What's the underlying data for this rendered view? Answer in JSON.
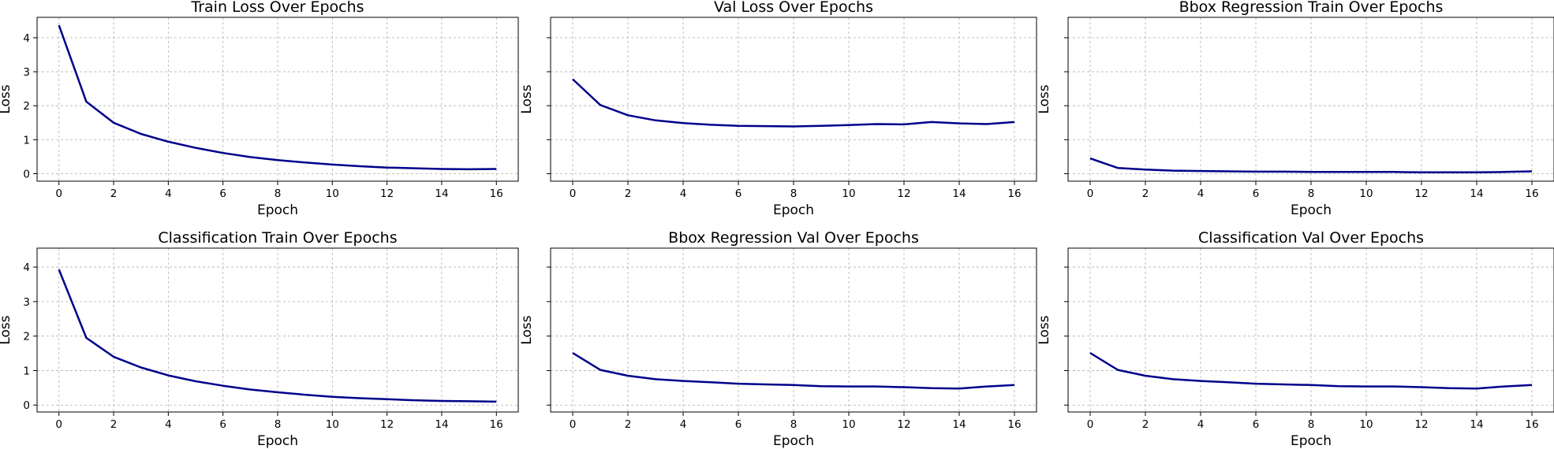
{
  "colors": {
    "line": "#00008b",
    "grid": "#b0b0b0",
    "axes": "#000000"
  },
  "chart_data": [
    {
      "type": "line",
      "title": "Train Loss Over Epochs",
      "xlabel": "Epoch",
      "ylabel": "Loss",
      "xlim": [
        -0.8,
        16.8
      ],
      "ylim": [
        -0.22,
        4.6
      ],
      "grid": true,
      "show_ytick_labels": true,
      "xticks": [
        0,
        2,
        4,
        6,
        8,
        10,
        12,
        14,
        16
      ],
      "yticks": [
        0,
        1,
        2,
        3,
        4
      ],
      "x": [
        0,
        1,
        2,
        3,
        4,
        5,
        6,
        7,
        8,
        9,
        10,
        11,
        12,
        13,
        14,
        15,
        16
      ],
      "series": [
        {
          "values": [
            4.37,
            2.12,
            1.5,
            1.17,
            0.94,
            0.76,
            0.61,
            0.49,
            0.4,
            0.33,
            0.27,
            0.22,
            0.18,
            0.16,
            0.14,
            0.13,
            0.14
          ]
        }
      ]
    },
    {
      "type": "line",
      "title": "Val Loss Over Epochs",
      "xlabel": "Epoch",
      "ylabel": "Loss",
      "xlim": [
        -0.8,
        16.8
      ],
      "ylim": [
        -0.22,
        4.6
      ],
      "grid": true,
      "show_ytick_labels": false,
      "xticks": [
        0,
        2,
        4,
        6,
        8,
        10,
        12,
        14,
        16
      ],
      "yticks": [
        0,
        1,
        2,
        3,
        4
      ],
      "x": [
        0,
        1,
        2,
        3,
        4,
        5,
        6,
        7,
        8,
        9,
        10,
        11,
        12,
        13,
        14,
        15,
        16
      ],
      "series": [
        {
          "values": [
            2.78,
            2.02,
            1.72,
            1.57,
            1.49,
            1.44,
            1.41,
            1.4,
            1.39,
            1.41,
            1.43,
            1.46,
            1.45,
            1.52,
            1.48,
            1.46,
            1.52
          ]
        }
      ]
    },
    {
      "type": "line",
      "title": "Bbox Regression Train Over Epochs",
      "xlabel": "Epoch",
      "ylabel": "Loss",
      "xlim": [
        -0.8,
        16.8
      ],
      "ylim": [
        -0.22,
        4.6
      ],
      "grid": true,
      "show_ytick_labels": false,
      "xticks": [
        0,
        2,
        4,
        6,
        8,
        10,
        12,
        14,
        16
      ],
      "yticks": [
        0,
        1,
        2,
        3,
        4
      ],
      "x": [
        0,
        1,
        2,
        3,
        4,
        5,
        6,
        7,
        8,
        9,
        10,
        11,
        12,
        13,
        14,
        15,
        16
      ],
      "series": [
        {
          "values": [
            0.45,
            0.17,
            0.12,
            0.09,
            0.08,
            0.07,
            0.06,
            0.06,
            0.05,
            0.05,
            0.05,
            0.05,
            0.04,
            0.04,
            0.04,
            0.05,
            0.07
          ]
        }
      ]
    },
    {
      "type": "line",
      "title": "Classification Train Over Epochs",
      "xlabel": "Epoch",
      "ylabel": "Loss",
      "xlim": [
        -0.8,
        16.8
      ],
      "ylim": [
        -0.2,
        4.55
      ],
      "grid": true,
      "show_ytick_labels": true,
      "xticks": [
        0,
        2,
        4,
        6,
        8,
        10,
        12,
        14,
        16
      ],
      "yticks": [
        0,
        1,
        2,
        3,
        4
      ],
      "x": [
        0,
        1,
        2,
        3,
        4,
        5,
        6,
        7,
        8,
        9,
        10,
        11,
        12,
        13,
        14,
        15,
        16
      ],
      "series": [
        {
          "values": [
            3.93,
            1.95,
            1.4,
            1.09,
            0.86,
            0.69,
            0.56,
            0.45,
            0.37,
            0.3,
            0.24,
            0.2,
            0.17,
            0.14,
            0.12,
            0.11,
            0.1
          ]
        }
      ]
    },
    {
      "type": "line",
      "title": "Bbox Regression Val Over Epochs",
      "xlabel": "Epoch",
      "ylabel": "Loss",
      "xlim": [
        -0.8,
        16.8
      ],
      "ylim": [
        -0.2,
        4.55
      ],
      "grid": true,
      "show_ytick_labels": false,
      "xticks": [
        0,
        2,
        4,
        6,
        8,
        10,
        12,
        14,
        16
      ],
      "yticks": [
        0,
        1,
        2,
        3,
        4
      ],
      "x": [
        0,
        1,
        2,
        3,
        4,
        5,
        6,
        7,
        8,
        9,
        10,
        11,
        12,
        13,
        14,
        15,
        16
      ],
      "series": [
        {
          "values": [
            1.51,
            1.02,
            0.85,
            0.75,
            0.7,
            0.66,
            0.62,
            0.6,
            0.58,
            0.55,
            0.54,
            0.54,
            0.52,
            0.49,
            0.48,
            0.54,
            0.58
          ]
        }
      ]
    },
    {
      "type": "line",
      "title": "Classification Val Over Epochs",
      "xlabel": "Epoch",
      "ylabel": "Loss",
      "xlim": [
        -0.8,
        16.8
      ],
      "ylim": [
        -0.2,
        4.55
      ],
      "grid": true,
      "show_ytick_labels": false,
      "xticks": [
        0,
        2,
        4,
        6,
        8,
        10,
        12,
        14,
        16
      ],
      "yticks": [
        0,
        1,
        2,
        3,
        4
      ],
      "x": [
        0,
        1,
        2,
        3,
        4,
        5,
        6,
        7,
        8,
        9,
        10,
        11,
        12,
        13,
        14,
        15,
        16
      ],
      "series": [
        {
          "values": [
            1.51,
            1.02,
            0.85,
            0.75,
            0.7,
            0.66,
            0.62,
            0.6,
            0.58,
            0.55,
            0.54,
            0.54,
            0.52,
            0.49,
            0.48,
            0.54,
            0.58
          ]
        }
      ]
    }
  ]
}
